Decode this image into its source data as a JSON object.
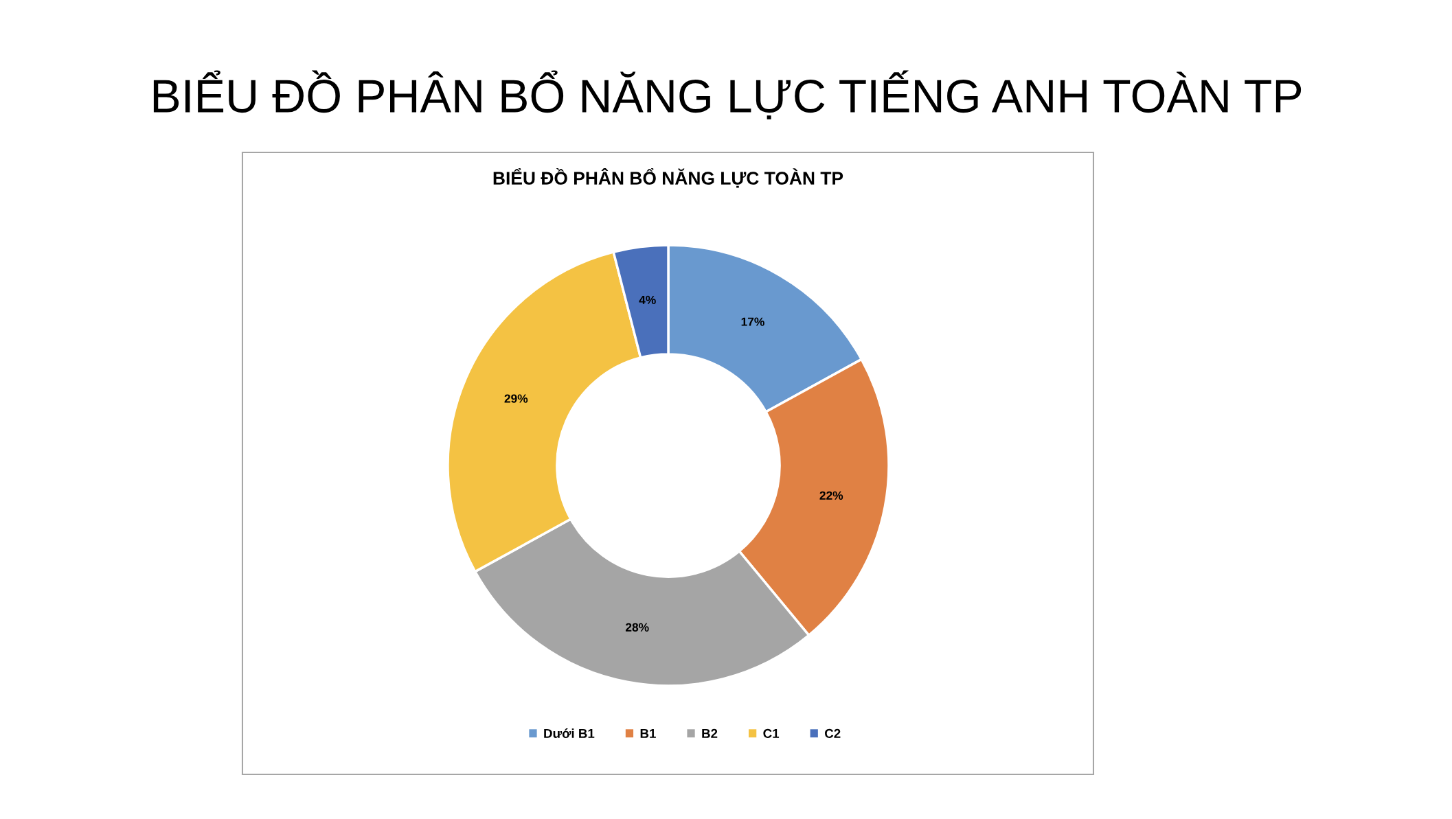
{
  "chart_data": {
    "type": "donut",
    "title": "BIỂU ĐỒ PHÂN BỔ NĂNG LỰC TIẾNG ANH TOÀN TP",
    "subtitle": "BIỂU ĐỒ PHÂN BỔ NĂNG LỰC TOÀN TP",
    "categories": [
      "Dưới B1",
      "B1",
      "B2",
      "C1",
      "C2"
    ],
    "values": [
      17,
      22,
      28,
      29,
      4
    ],
    "colors": [
      "#6999cf",
      "#e08144",
      "#a5a5a5",
      "#f4c243",
      "#4a70bb"
    ],
    "value_labels": [
      "17%",
      "22%",
      "28%",
      "29%",
      "4%"
    ],
    "legend": "bottom"
  }
}
